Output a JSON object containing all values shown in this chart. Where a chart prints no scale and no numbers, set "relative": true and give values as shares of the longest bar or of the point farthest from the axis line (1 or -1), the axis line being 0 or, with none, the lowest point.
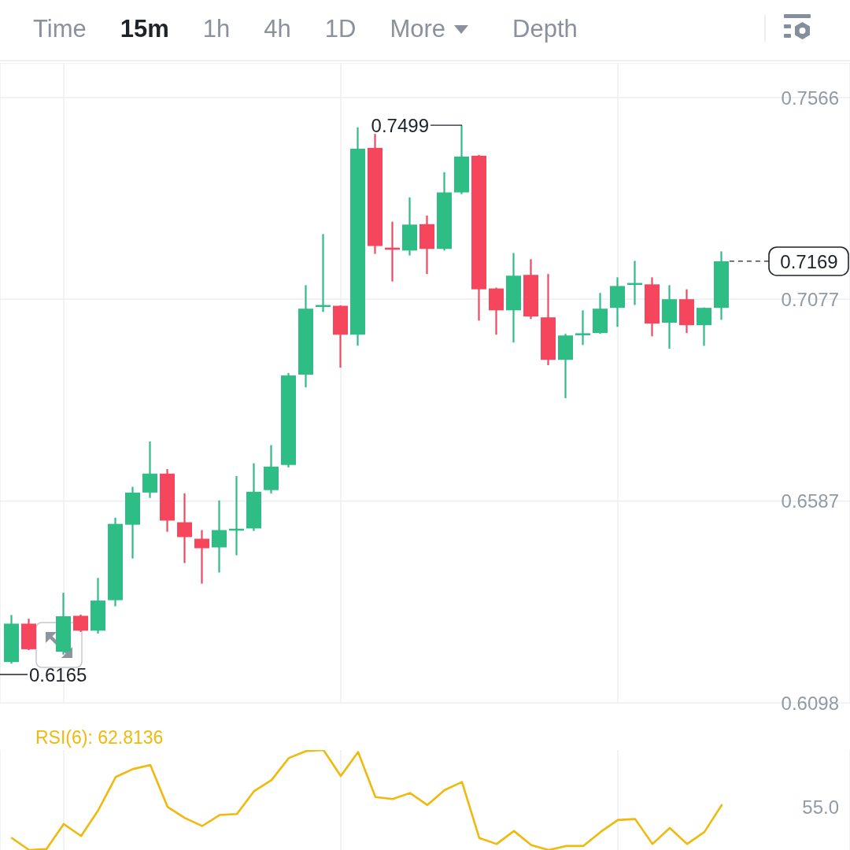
{
  "chart_data": [
    {
      "type": "other",
      "annotations": [
        "Time",
        "15m",
        "1h",
        "4h",
        "1D",
        "More",
        "Depth"
      ]
    },
    {
      "type": "candlestick",
      "categories": [
        null,
        null,
        null,
        null,
        null,
        null,
        null,
        null,
        null,
        null,
        null,
        null,
        null,
        null,
        null,
        null,
        null,
        null,
        null,
        null,
        null,
        null,
        null,
        null,
        null,
        null,
        null,
        null,
        null,
        null,
        null,
        null,
        null,
        null,
        null,
        null,
        null,
        null,
        null,
        null,
        null,
        null
      ],
      "ohlc": [
        [
          0.6197,
          0.6311,
          0.6193,
          0.629
        ],
        [
          0.629,
          0.6302,
          0.6226,
          0.6228
        ],
        null,
        [
          0.6222,
          0.6365,
          0.6215,
          0.6308
        ],
        [
          0.6309,
          0.6312,
          0.627,
          0.6273
        ],
        [
          0.6273,
          0.6401,
          0.6266,
          0.6346
        ],
        [
          0.6347,
          0.6547,
          0.6332,
          0.6532
        ],
        [
          0.653,
          0.6622,
          0.6448,
          0.6608
        ],
        [
          0.6608,
          0.6732,
          0.6595,
          0.6654
        ],
        [
          0.6654,
          0.6665,
          0.6513,
          0.654
        ],
        [
          0.6536,
          0.6606,
          0.6437,
          0.65
        ],
        [
          0.6496,
          0.6517,
          0.6387,
          0.6473
        ],
        [
          0.6475,
          0.6589,
          0.6414,
          0.6517
        ],
        [
          0.6517,
          0.6648,
          0.6456,
          0.6519
        ],
        [
          0.6521,
          0.6679,
          0.6515,
          0.661
        ],
        [
          0.6614,
          0.6723,
          0.6606,
          0.6671
        ],
        [
          0.6675,
          0.6898,
          0.6669,
          0.6892
        ],
        [
          0.6894,
          0.7111,
          0.6863,
          0.7054
        ],
        [
          0.706,
          0.7235,
          0.7046,
          0.7061
        ],
        [
          0.7061,
          0.7062,
          0.6911,
          0.6991
        ],
        [
          0.6991,
          0.7494,
          0.6964,
          0.7442
        ],
        [
          0.7444,
          0.7478,
          0.7187,
          0.7206
        ],
        [
          0.7202,
          0.7265,
          0.712,
          0.7197
        ],
        [
          0.7195,
          0.7324,
          0.7183,
          0.7258
        ],
        [
          0.7259,
          0.728,
          0.7138,
          0.7199
        ],
        [
          0.7199,
          0.7385,
          0.7195,
          0.7336
        ],
        [
          0.7336,
          0.7499,
          0.7332,
          0.7423
        ],
        [
          0.7425,
          0.7427,
          0.7025,
          0.7101
        ],
        [
          0.7103,
          0.7105,
          0.6991,
          0.705
        ],
        [
          0.705,
          0.7189,
          0.6972,
          0.7134
        ],
        [
          0.7136,
          0.7174,
          0.7029,
          0.7035
        ],
        [
          0.7033,
          0.7138,
          0.6917,
          0.693
        ],
        [
          0.693,
          0.6993,
          0.6837,
          0.6989
        ],
        [
          0.6991,
          0.705,
          0.6966,
          0.6993
        ],
        [
          0.6995,
          0.7092,
          0.6993,
          0.7054
        ],
        [
          0.7056,
          0.713,
          0.701,
          0.7109
        ],
        [
          0.7113,
          0.717,
          0.7063,
          0.7115
        ],
        [
          0.7113,
          0.713,
          0.6987,
          0.7018
        ],
        [
          0.702,
          0.7111,
          0.6957,
          0.7077
        ],
        [
          0.7077,
          0.7101,
          0.6995,
          0.7014
        ],
        [
          0.7014,
          0.7057,
          0.6964,
          0.7056
        ],
        [
          0.7056,
          0.7193,
          0.7027,
          0.7169
        ]
      ],
      "colors": [
        "#2ebd85",
        "#f6465d",
        null,
        "#2ebd85",
        "#f6465d",
        "#2ebd85",
        "#2ebd85",
        "#2ebd85",
        "#2ebd85",
        "#f6465d",
        "#f6465d",
        "#f6465d",
        "#2ebd85",
        "#2ebd85",
        "#2ebd85",
        "#2ebd85",
        "#2ebd85",
        "#2ebd85",
        "#2ebd85",
        "#f6465d",
        "#2ebd85",
        "#f6465d",
        "#f6465d",
        "#2ebd85",
        "#f6465d",
        "#2ebd85",
        "#2ebd85",
        "#f6465d",
        "#f6465d",
        "#2ebd85",
        "#f6465d",
        "#f6465d",
        "#2ebd85",
        "#2ebd85",
        "#2ebd85",
        "#2ebd85",
        "#2ebd85",
        "#f6465d",
        "#2ebd85",
        "#f6465d",
        "#2ebd85",
        "#2ebd85"
      ],
      "ylim": [
        0.6098,
        0.765
      ],
      "yticks": [
        0.6098,
        0.6587,
        0.7077,
        0.7566
      ],
      "grid": true,
      "tick_labels": "y",
      "annotations": [
        "0.7499",
        "0.6165"
      ],
      "ref_lines": [
        {
          "axis": "y",
          "value": 0.7169,
          "label": "0.7169",
          "color": "#1e2329",
          "line_style": "dashed"
        }
      ]
    },
    {
      "type": "line",
      "title": "RSI(6): 62.8136",
      "categories": [
        null,
        null,
        null,
        null,
        null,
        null,
        null,
        null,
        null,
        null,
        null,
        null,
        null,
        null,
        null,
        null,
        null,
        null,
        null,
        null,
        null,
        null,
        null,
        null,
        null,
        null,
        null,
        null,
        null,
        null,
        null,
        null,
        null,
        null,
        null,
        null,
        null,
        null,
        null,
        null,
        null,
        null
      ],
      "series": [
        {
          "color": "#f0b90b",
          "values": [
            0.12,
            0,
            0.01,
            0.26,
            0.14,
            0.4,
            0.73,
            0.81,
            0.85,
            0.43,
            0.32,
            0.24,
            0.35,
            0.36,
            0.59,
            0.7,
            0.92,
            0.99,
            1,
            0.74,
            0.98,
            0.53,
            0.51,
            0.57,
            0.45,
            0.6,
            0.68,
            0.12,
            0.06,
            0.19,
            0.05,
            0,
            0.04,
            0.04,
            0.18,
            0.3,
            0.31,
            0.06,
            0.22,
            0.06,
            0.18,
            0.45
          ]
        }
      ],
      "relative": true,
      "grid": "x",
      "tick_labels": false,
      "annotations": [
        "55.0"
      ]
    }
  ]
}
